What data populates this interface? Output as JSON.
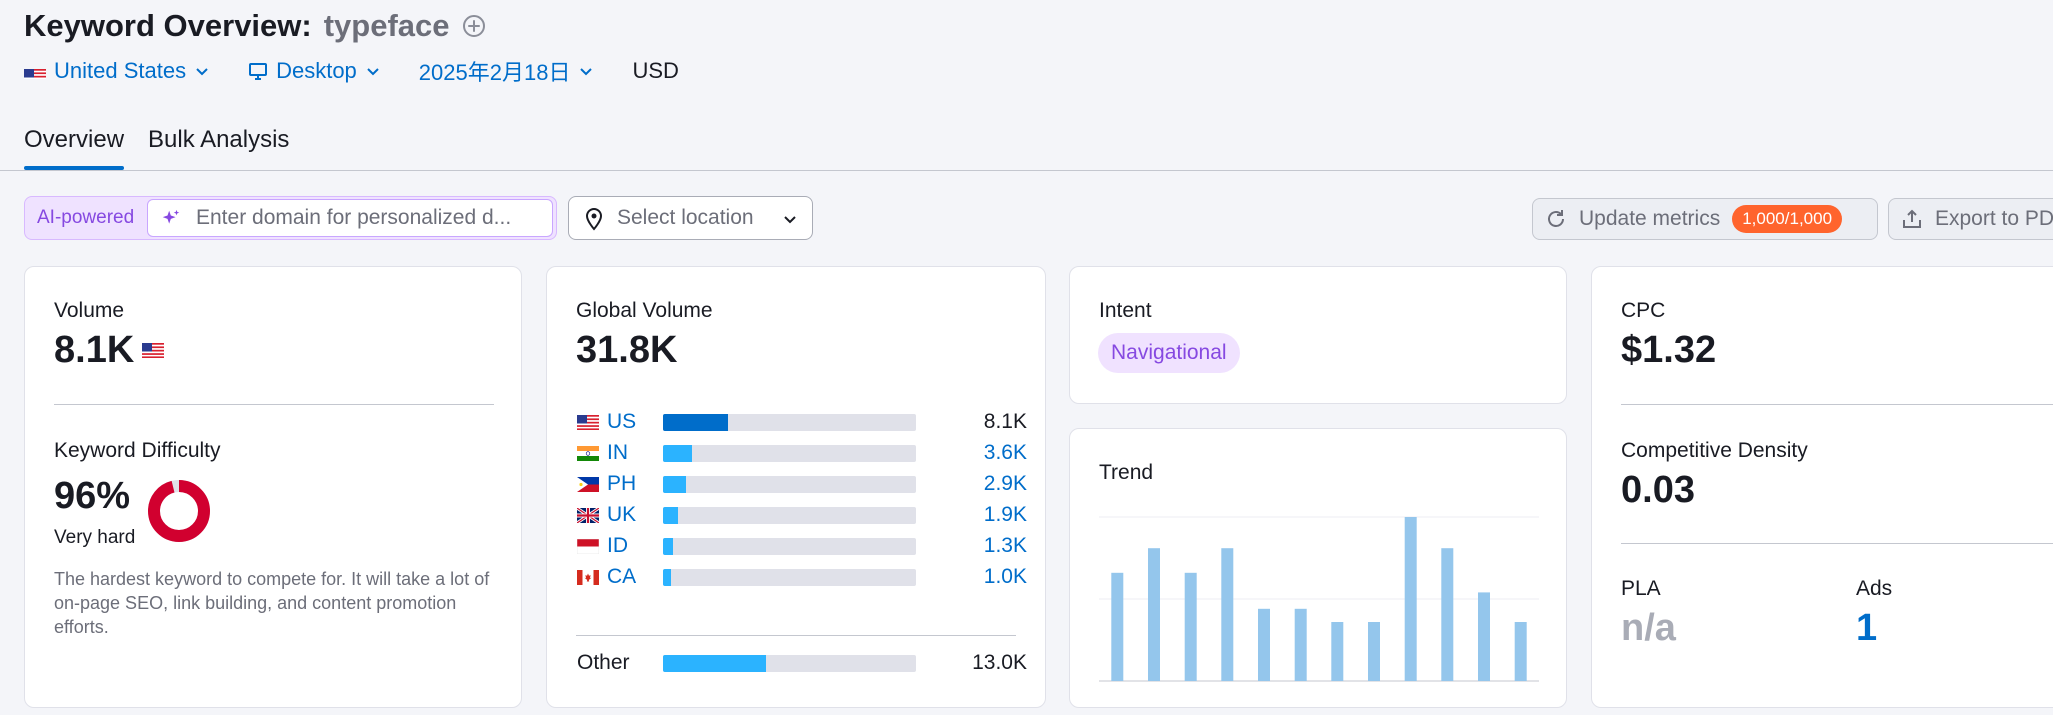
{
  "header": {
    "title": "Keyword Overview:",
    "keyword": "typeface",
    "filters": {
      "country": "United States",
      "device": "Desktop",
      "date": "2025年2月18日",
      "currency": "USD"
    },
    "tabs": [
      {
        "label": "Overview",
        "active": true
      },
      {
        "label": "Bulk Analysis",
        "active": false
      }
    ]
  },
  "toolbar": {
    "ai_label": "AI-powered",
    "domain_placeholder": "Enter domain for personalized d...",
    "location_placeholder": "Select location",
    "update_label": "Update metrics",
    "update_badge": "1,000/1,000",
    "export_label": "Export to PDF"
  },
  "volume_card": {
    "volume_label": "Volume",
    "volume_value": "8.1K",
    "kd_label": "Keyword Difficulty",
    "kd_value": "96%",
    "kd_percent": 96,
    "kd_level": "Very hard",
    "kd_description": "The hardest keyword to compete for. It will take a lot of on-page SEO, link building, and content promotion efforts.",
    "kd_color": "#d1002f"
  },
  "global_card": {
    "label": "Global Volume",
    "value": "31.8K",
    "rows": [
      {
        "code": "US",
        "value": "8.1K",
        "share": 0.255,
        "color": "#006dca",
        "highlight": true
      },
      {
        "code": "IN",
        "value": "3.6K",
        "share": 0.113,
        "color": "#2bb3ff",
        "highlight": false
      },
      {
        "code": "PH",
        "value": "2.9K",
        "share": 0.091,
        "color": "#2bb3ff",
        "highlight": false
      },
      {
        "code": "UK",
        "value": "1.9K",
        "share": 0.06,
        "color": "#2bb3ff",
        "highlight": false
      },
      {
        "code": "ID",
        "value": "1.3K",
        "share": 0.041,
        "color": "#2bb3ff",
        "highlight": false
      },
      {
        "code": "CA",
        "value": "1.0K",
        "share": 0.031,
        "color": "#2bb3ff",
        "highlight": false
      }
    ],
    "other": {
      "label": "Other",
      "value": "13.0K",
      "share": 0.409,
      "color": "#2bb3ff"
    }
  },
  "intent_card": {
    "label": "Intent",
    "intent": "Navigational"
  },
  "trend_card": {
    "label": "Trend",
    "bar_color": "#94c6ec",
    "values": [
      0.66,
      0.81,
      0.66,
      0.81,
      0.44,
      0.44,
      0.36,
      0.36,
      1.0,
      0.81,
      0.54,
      0.36
    ]
  },
  "cpc_card": {
    "cpc_label": "CPC",
    "cpc_value": "$1.32",
    "cd_label": "Competitive Density",
    "cd_value": "0.03",
    "pla_label": "PLA",
    "pla_value": "n/a",
    "ads_label": "Ads",
    "ads_value": "1"
  }
}
